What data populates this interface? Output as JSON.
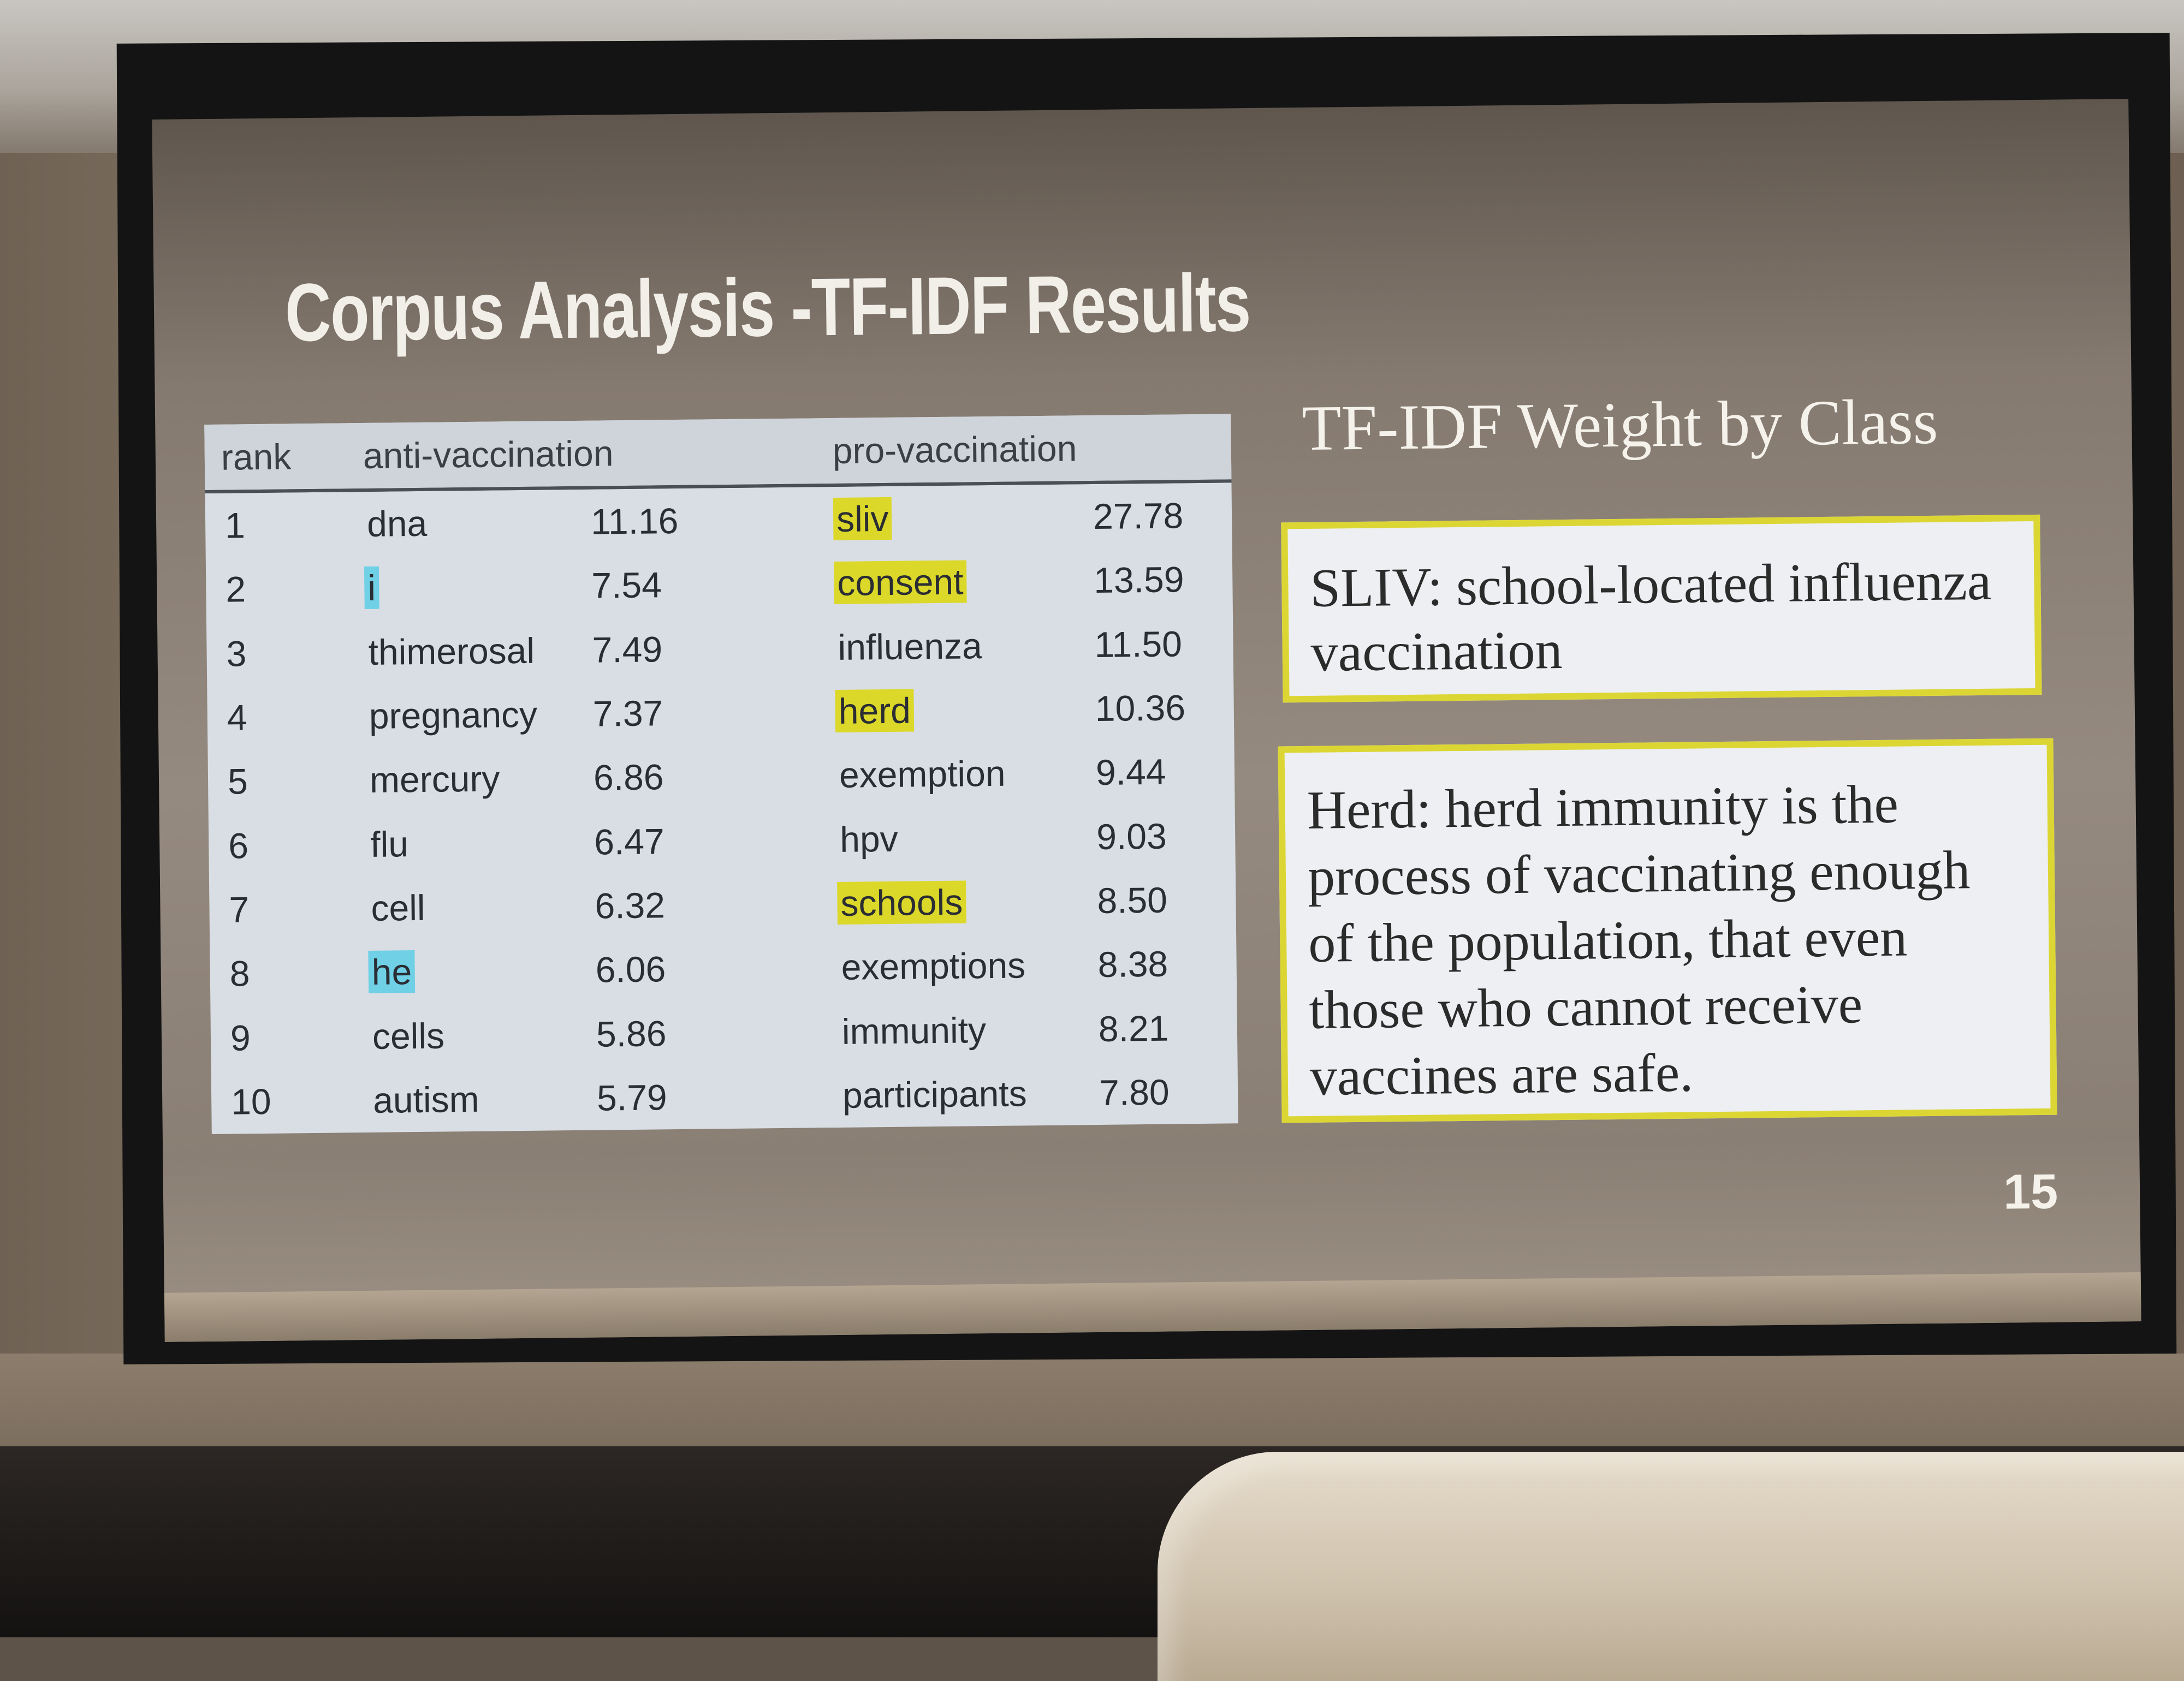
{
  "slide": {
    "title": "Corpus Analysis -TF-IDF Results",
    "page_number": "15"
  },
  "table": {
    "headers": [
      "rank",
      "anti-vaccination",
      "",
      "pro-vaccination",
      ""
    ],
    "rows": [
      {
        "rank": "1",
        "anti_word": "dna",
        "anti_weight": "11.16",
        "pro_word": "sliv",
        "pro_weight": "27.78"
      },
      {
        "rank": "2",
        "anti_word": "i",
        "anti_weight": "7.54",
        "pro_word": "consent",
        "pro_weight": "13.59"
      },
      {
        "rank": "3",
        "anti_word": "thimerosal",
        "anti_weight": "7.49",
        "pro_word": "influenza",
        "pro_weight": "11.50"
      },
      {
        "rank": "4",
        "anti_word": "pregnancy",
        "anti_weight": "7.37",
        "pro_word": "herd",
        "pro_weight": "10.36"
      },
      {
        "rank": "5",
        "anti_word": "mercury",
        "anti_weight": "6.86",
        "pro_word": "exemption",
        "pro_weight": "9.44"
      },
      {
        "rank": "6",
        "anti_word": "flu",
        "anti_weight": "6.47",
        "pro_word": "hpv",
        "pro_weight": "9.03"
      },
      {
        "rank": "7",
        "anti_word": "cell",
        "anti_weight": "6.32",
        "pro_word": "schools",
        "pro_weight": "8.50"
      },
      {
        "rank": "8",
        "anti_word": "he",
        "anti_weight": "6.06",
        "pro_word": "exemptions",
        "pro_weight": "8.38"
      },
      {
        "rank": "9",
        "anti_word": "cells",
        "anti_weight": "5.86",
        "pro_word": "immunity",
        "pro_weight": "8.21"
      },
      {
        "rank": "10",
        "anti_word": "autism",
        "anti_weight": "5.79",
        "pro_word": "participants",
        "pro_weight": "7.80"
      }
    ],
    "highlight_colors": {
      "yellow": "#dcd82a",
      "cyan": "#6fd0e6"
    },
    "highlighted_pro_words": [
      "sliv",
      "consent",
      "herd",
      "schools"
    ],
    "highlighted_anti_words": [
      "i",
      "he"
    ]
  },
  "sidebar": {
    "heading": "TF-IDF Weight by Class",
    "sliv_definition": "SLIV: school-located influenza vaccination",
    "herd_definition": "Herd: herd immunity is the process of vaccinating enough of the population, that even those who cannot receive vaccines are safe.",
    "box_border_color": "#dcd635"
  }
}
